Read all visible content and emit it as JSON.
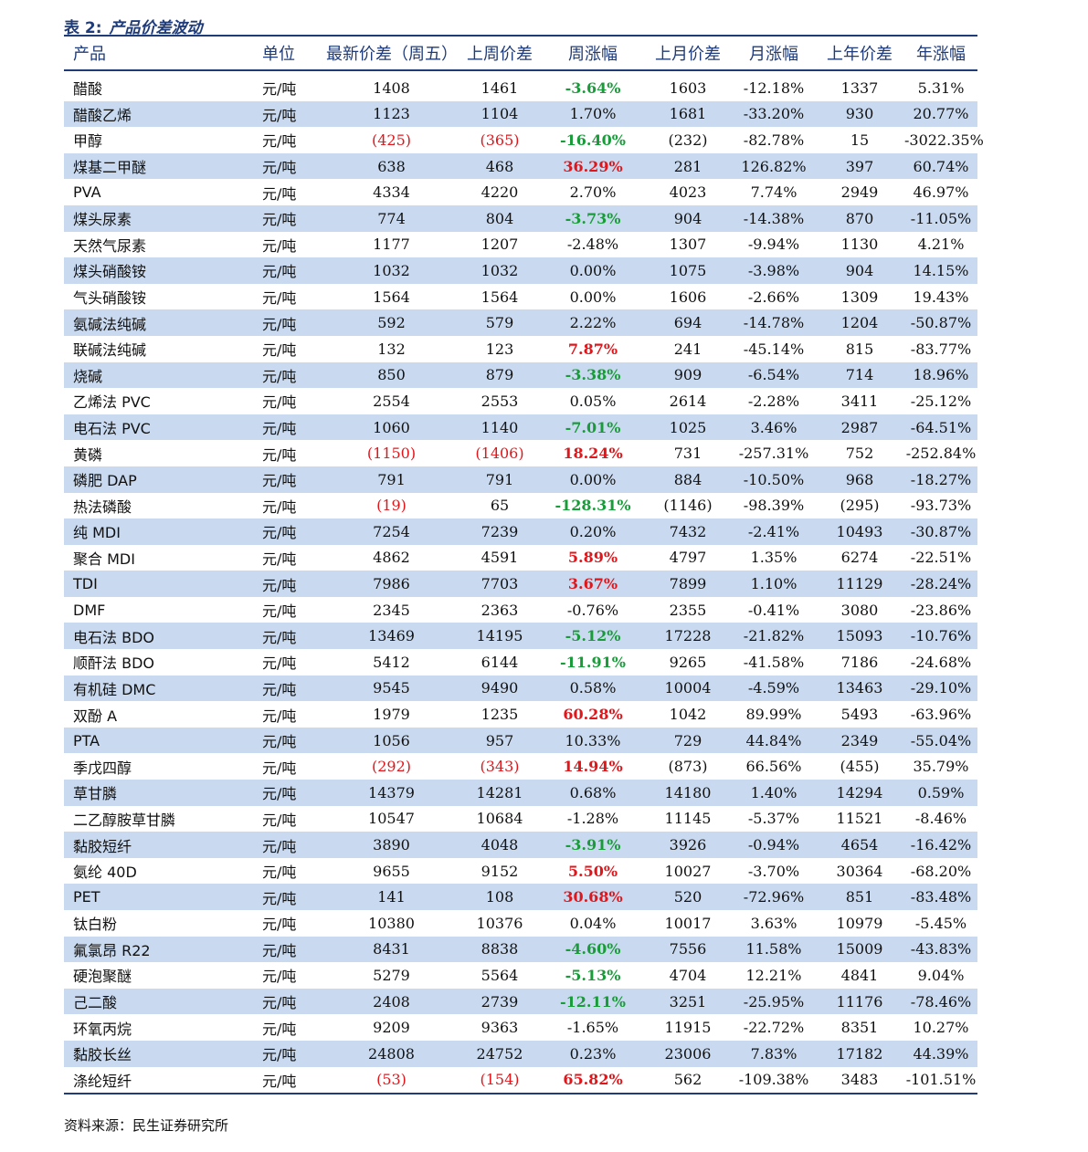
{
  "caption": {
    "label": "表 2:",
    "title": "产品价差波动"
  },
  "headers": [
    "产品",
    "单位",
    "最新价差（周五）",
    "上周价差",
    "周涨幅",
    "上月价差",
    "月涨幅",
    "上年价差",
    "年涨幅"
  ],
  "colors": {
    "accent": "#1f3b78",
    "shade": "#c9daf0",
    "up": "#e0161b",
    "down": "#1a9b3a"
  },
  "rows": [
    {
      "cells": [
        "醋酸",
        "元/吨",
        "1408",
        "1461",
        "-3.64%",
        "1603",
        "-12.18%",
        "1337",
        "5.31%"
      ],
      "wk": "down"
    },
    {
      "cells": [
        "醋酸乙烯",
        "元/吨",
        "1123",
        "1104",
        "1.70%",
        "1681",
        "-33.20%",
        "930",
        "20.77%"
      ],
      "wk": "plain"
    },
    {
      "cells": [
        "甲醇",
        "元/吨",
        "(425)",
        "(365)",
        "-16.40%",
        "(232)",
        "-82.78%",
        "15",
        "-3022.35%"
      ],
      "wk": "down",
      "red": [
        2,
        3
      ]
    },
    {
      "cells": [
        "煤基二甲醚",
        "元/吨",
        "638",
        "468",
        "36.29%",
        "281",
        "126.82%",
        "397",
        "60.74%"
      ],
      "wk": "up"
    },
    {
      "cells": [
        "PVA",
        "元/吨",
        "4334",
        "4220",
        "2.70%",
        "4023",
        "7.74%",
        "2949",
        "46.97%"
      ],
      "wk": "plain"
    },
    {
      "cells": [
        "煤头尿素",
        "元/吨",
        "774",
        "804",
        "-3.73%",
        "904",
        "-14.38%",
        "870",
        "-11.05%"
      ],
      "wk": "down"
    },
    {
      "cells": [
        "天然气尿素",
        "元/吨",
        "1177",
        "1207",
        "-2.48%",
        "1307",
        "-9.94%",
        "1130",
        "4.21%"
      ],
      "wk": "plain"
    },
    {
      "cells": [
        "煤头硝酸铵",
        "元/吨",
        "1032",
        "1032",
        "0.00%",
        "1075",
        "-3.98%",
        "904",
        "14.15%"
      ],
      "wk": "plain"
    },
    {
      "cells": [
        "气头硝酸铵",
        "元/吨",
        "1564",
        "1564",
        "0.00%",
        "1606",
        "-2.66%",
        "1309",
        "19.43%"
      ],
      "wk": "plain"
    },
    {
      "cells": [
        "氨碱法纯碱",
        "元/吨",
        "592",
        "579",
        "2.22%",
        "694",
        "-14.78%",
        "1204",
        "-50.87%"
      ],
      "wk": "plain"
    },
    {
      "cells": [
        "联碱法纯碱",
        "元/吨",
        "132",
        "123",
        "7.87%",
        "241",
        "-45.14%",
        "815",
        "-83.77%"
      ],
      "wk": "up"
    },
    {
      "cells": [
        "烧碱",
        "元/吨",
        "850",
        "879",
        "-3.38%",
        "909",
        "-6.54%",
        "714",
        "18.96%"
      ],
      "wk": "down"
    },
    {
      "cells": [
        "乙烯法 PVC",
        "元/吨",
        "2554",
        "2553",
        "0.05%",
        "2614",
        "-2.28%",
        "3411",
        "-25.12%"
      ],
      "wk": "plain"
    },
    {
      "cells": [
        "电石法 PVC",
        "元/吨",
        "1060",
        "1140",
        "-7.01%",
        "1025",
        "3.46%",
        "2987",
        "-64.51%"
      ],
      "wk": "down"
    },
    {
      "cells": [
        "黄磷",
        "元/吨",
        "(1150)",
        "(1406)",
        "18.24%",
        "731",
        "-257.31%",
        "752",
        "-252.84%"
      ],
      "wk": "up",
      "red": [
        2,
        3
      ]
    },
    {
      "cells": [
        "磷肥 DAP",
        "元/吨",
        "791",
        "791",
        "0.00%",
        "884",
        "-10.50%",
        "968",
        "-18.27%"
      ],
      "wk": "plain"
    },
    {
      "cells": [
        "热法磷酸",
        "元/吨",
        "(19)",
        "65",
        "-128.31%",
        "(1146)",
        "-98.39%",
        "(295)",
        "-93.73%"
      ],
      "wk": "down",
      "red": [
        2
      ]
    },
    {
      "cells": [
        "纯 MDI",
        "元/吨",
        "7254",
        "7239",
        "0.20%",
        "7432",
        "-2.41%",
        "10493",
        "-30.87%"
      ],
      "wk": "plain"
    },
    {
      "cells": [
        "聚合 MDI",
        "元/吨",
        "4862",
        "4591",
        "5.89%",
        "4797",
        "1.35%",
        "6274",
        "-22.51%"
      ],
      "wk": "up"
    },
    {
      "cells": [
        "TDI",
        "元/吨",
        "7986",
        "7703",
        "3.67%",
        "7899",
        "1.10%",
        "11129",
        "-28.24%"
      ],
      "wk": "up"
    },
    {
      "cells": [
        "DMF",
        "元/吨",
        "2345",
        "2363",
        "-0.76%",
        "2355",
        "-0.41%",
        "3080",
        "-23.86%"
      ],
      "wk": "plain"
    },
    {
      "cells": [
        "电石法 BDO",
        "元/吨",
        "13469",
        "14195",
        "-5.12%",
        "17228",
        "-21.82%",
        "15093",
        "-10.76%"
      ],
      "wk": "down"
    },
    {
      "cells": [
        "顺酐法 BDO",
        "元/吨",
        "5412",
        "6144",
        "-11.91%",
        "9265",
        "-41.58%",
        "7186",
        "-24.68%"
      ],
      "wk": "down"
    },
    {
      "cells": [
        "有机硅 DMC",
        "元/吨",
        "9545",
        "9490",
        "0.58%",
        "10004",
        "-4.59%",
        "13463",
        "-29.10%"
      ],
      "wk": "plain"
    },
    {
      "cells": [
        "双酚 A",
        "元/吨",
        "1979",
        "1235",
        "60.28%",
        "1042",
        "89.99%",
        "5493",
        "-63.96%"
      ],
      "wk": "up"
    },
    {
      "cells": [
        "PTA",
        "元/吨",
        "1056",
        "957",
        "10.33%",
        "729",
        "44.84%",
        "2349",
        "-55.04%"
      ],
      "wk": "plain"
    },
    {
      "cells": [
        "季戊四醇",
        "元/吨",
        "(292)",
        "(343)",
        "14.94%",
        "(873)",
        "66.56%",
        "(455)",
        "35.79%"
      ],
      "wk": "up",
      "red": [
        2,
        3
      ]
    },
    {
      "cells": [
        "草甘膦",
        "元/吨",
        "14379",
        "14281",
        "0.68%",
        "14180",
        "1.40%",
        "14294",
        "0.59%"
      ],
      "wk": "plain"
    },
    {
      "cells": [
        "二乙醇胺草甘膦",
        "元/吨",
        "10547",
        "10684",
        "-1.28%",
        "11145",
        "-5.37%",
        "11521",
        "-8.46%"
      ],
      "wk": "plain"
    },
    {
      "cells": [
        "黏胶短纤",
        "元/吨",
        "3890",
        "4048",
        "-3.91%",
        "3926",
        "-0.94%",
        "4654",
        "-16.42%"
      ],
      "wk": "down"
    },
    {
      "cells": [
        "氨纶 40D",
        "元/吨",
        "9655",
        "9152",
        "5.50%",
        "10027",
        "-3.70%",
        "30364",
        "-68.20%"
      ],
      "wk": "up"
    },
    {
      "cells": [
        "PET",
        "元/吨",
        "141",
        "108",
        "30.68%",
        "520",
        "-72.96%",
        "851",
        "-83.48%"
      ],
      "wk": "up"
    },
    {
      "cells": [
        "钛白粉",
        "元/吨",
        "10380",
        "10376",
        "0.04%",
        "10017",
        "3.63%",
        "10979",
        "-5.45%"
      ],
      "wk": "plain"
    },
    {
      "cells": [
        "氟氯昂 R22",
        "元/吨",
        "8431",
        "8838",
        "-4.60%",
        "7556",
        "11.58%",
        "15009",
        "-43.83%"
      ],
      "wk": "down"
    },
    {
      "cells": [
        "硬泡聚醚",
        "元/吨",
        "5279",
        "5564",
        "-5.13%",
        "4704",
        "12.21%",
        "4841",
        "9.04%"
      ],
      "wk": "down"
    },
    {
      "cells": [
        "己二酸",
        "元/吨",
        "2408",
        "2739",
        "-12.11%",
        "3251",
        "-25.95%",
        "11176",
        "-78.46%"
      ],
      "wk": "down"
    },
    {
      "cells": [
        "环氧丙烷",
        "元/吨",
        "9209",
        "9363",
        "-1.65%",
        "11915",
        "-22.72%",
        "8351",
        "10.27%"
      ],
      "wk": "plain"
    },
    {
      "cells": [
        "黏胶长丝",
        "元/吨",
        "24808",
        "24752",
        "0.23%",
        "23006",
        "7.83%",
        "17182",
        "44.39%"
      ],
      "wk": "plain"
    },
    {
      "cells": [
        "涤纶短纤",
        "元/吨",
        "(53)",
        "(154)",
        "65.82%",
        "562",
        "-109.38%",
        "3483",
        "-101.51%"
      ],
      "wk": "up",
      "red": [
        2,
        3
      ]
    }
  ],
  "source": "资料来源：民生证券研究所"
}
